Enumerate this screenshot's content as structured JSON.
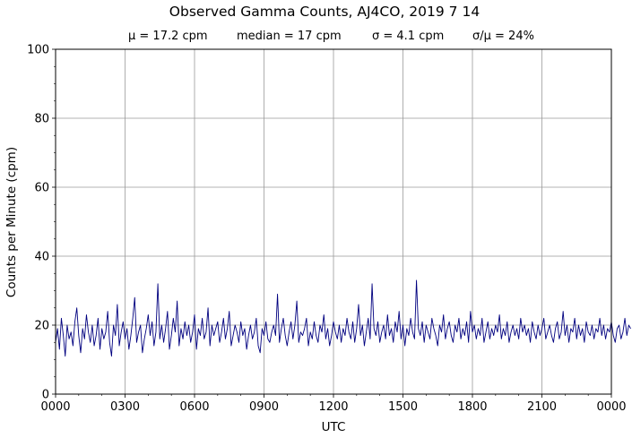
{
  "chart_data": {
    "type": "line",
    "title": "Observed Gamma Counts, AJ4CO, 2019 7 14",
    "stats": [
      "μ = 17.2 cpm",
      "median = 17 cpm",
      "σ = 4.1 cpm",
      "σ/μ = 24%"
    ],
    "xlabel": "UTC",
    "ylabel": "Counts per Minute (cpm)",
    "xlim": [
      0,
      1440
    ],
    "ylim": [
      0,
      100
    ],
    "x_ticks": [
      {
        "value": 0,
        "label": "0000"
      },
      {
        "value": 180,
        "label": "0300"
      },
      {
        "value": 360,
        "label": "0600"
      },
      {
        "value": 540,
        "label": "0900"
      },
      {
        "value": 720,
        "label": "1200"
      },
      {
        "value": 900,
        "label": "1500"
      },
      {
        "value": 1080,
        "label": "1800"
      },
      {
        "value": 1260,
        "label": "2100"
      },
      {
        "value": 1440,
        "label": "0000"
      }
    ],
    "y_ticks": [
      0,
      20,
      40,
      60,
      80,
      100
    ],
    "grid": true,
    "series_color": "#00007f",
    "series": [
      {
        "x_step_minutes": 5,
        "values": [
          15,
          19,
          13,
          22,
          17,
          11,
          20,
          16,
          18,
          14,
          21,
          25,
          17,
          12,
          19,
          16,
          23,
          18,
          15,
          20,
          14,
          17,
          22,
          13,
          19,
          16,
          18,
          24,
          15,
          11,
          20,
          17,
          26,
          14,
          18,
          21,
          16,
          19,
          13,
          17,
          22,
          28,
          15,
          18,
          20,
          12,
          16,
          19,
          23,
          17,
          21,
          14,
          18,
          32,
          16,
          20,
          15,
          19,
          24,
          13,
          17,
          22,
          18,
          27,
          14,
          19,
          16,
          21,
          17,
          20,
          15,
          18,
          23,
          13,
          19,
          17,
          22,
          16,
          18,
          25,
          14,
          20,
          17,
          19,
          21,
          15,
          18,
          22,
          16,
          19,
          24,
          14,
          17,
          20,
          18,
          15,
          21,
          17,
          19,
          13,
          17,
          20,
          16,
          18,
          22,
          14,
          12,
          19,
          17,
          21,
          16,
          15,
          18,
          20,
          17,
          29,
          15,
          19,
          22,
          17,
          14,
          18,
          21,
          16,
          20,
          27,
          15,
          18,
          17,
          19,
          22,
          14,
          18,
          16,
          21,
          17,
          15,
          20,
          18,
          23,
          16,
          19,
          14,
          17,
          21,
          18,
          16,
          20,
          15,
          19,
          17,
          22,
          18,
          16,
          21,
          15,
          19,
          26,
          17,
          20,
          14,
          18,
          22,
          16,
          32,
          19,
          17,
          21,
          15,
          18,
          20,
          16,
          23,
          17,
          19,
          15,
          21,
          18,
          24,
          16,
          20,
          14,
          19,
          17,
          22,
          18,
          16,
          33,
          19,
          17,
          21,
          15,
          20,
          18,
          16,
          22,
          19,
          17,
          14,
          20,
          18,
          23,
          16,
          19,
          21,
          17,
          15,
          20,
          18,
          22,
          16,
          19,
          17,
          21,
          15,
          24,
          18,
          20,
          16,
          19,
          17,
          22,
          15,
          18,
          21,
          16,
          19,
          17,
          20,
          18,
          23,
          16,
          19,
          17,
          21,
          15,
          18,
          20,
          17,
          19,
          16,
          22,
          18,
          20,
          17,
          19,
          15,
          21,
          18,
          16,
          20,
          17,
          19,
          22,
          16,
          18,
          20,
          17,
          15,
          19,
          21,
          16,
          18,
          24,
          17,
          20,
          15,
          19,
          18,
          22,
          16,
          20,
          17,
          19,
          15,
          21,
          18,
          17,
          20,
          16,
          19,
          18,
          22,
          17,
          20,
          16,
          19,
          18,
          21,
          17,
          15,
          19,
          20,
          16,
          18,
          22,
          17,
          20,
          19
        ]
      }
    ]
  }
}
